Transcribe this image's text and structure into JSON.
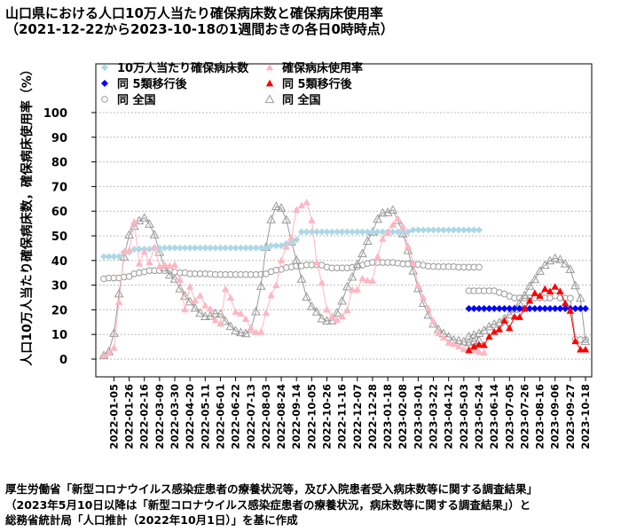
{
  "title_line1": "山口県における人口10万人当たり確保病床数と確保病床使用率",
  "title_line2": "（2021-12-22から2023-10-18の1週間おきの各日0時時点）",
  "source_lines": [
    "厚生労働省「新型コロナウイルス感染症患者の療養状況等，及び入院患者受入病床数等に関する調査結果」",
    "（2023年5月10日以降は「新型コロナウイルス感染症患者の療養状況，病床数等に関する調査結果」）と",
    "総務省統計局「人口推計（2022年10月1日）」を基に作成"
  ],
  "colors": {
    "beds_pref": "#add8e6",
    "beds_pref_post": "#0000ff",
    "usage_pref": "#ffb6c1",
    "usage_pref_post": "#ff0000",
    "national": "#999999",
    "grid": "#bbbbbb"
  },
  "chart_data": {
    "type": "scatter",
    "ylabel": "人口10万人当たり確保病床数，確保病床使用率（%）",
    "ylim": [
      0,
      100
    ],
    "yticks": [
      0,
      10,
      20,
      30,
      40,
      50,
      60,
      70,
      80,
      90,
      100
    ],
    "grid": true,
    "legend_position": "top-left",
    "x_start": "2021-12-22",
    "x_end": "2023-10-18",
    "x_interval_days": 7,
    "xtick_labels": [
      "2022-01-05",
      "2022-01-26",
      "2022-02-16",
      "2022-03-09",
      "2022-03-30",
      "2022-04-20",
      "2022-05-11",
      "2022-06-01",
      "2022-06-22",
      "2022-07-13",
      "2022-08-03",
      "2022-08-24",
      "2022-09-14",
      "2022-10-05",
      "2022-10-26",
      "2022-11-16",
      "2022-12-07",
      "2022-12-28",
      "2023-01-18",
      "2023-02-08",
      "2023-03-01",
      "2023-03-22",
      "2023-04-12",
      "2023-05-03",
      "2023-05-24",
      "2023-06-14",
      "2023-07-05",
      "2023-07-26",
      "2023-08-16",
      "2023-09-06",
      "2023-09-27",
      "2023-10-18"
    ],
    "legend": [
      {
        "label": "10万人当たり確保病床数",
        "series": "beds_pref",
        "marker": "diamond"
      },
      {
        "label": "確保病床使用率",
        "series": "usage_pref",
        "marker": "triangle"
      },
      {
        "label": "同 5類移行後",
        "series": "beds_pref_post",
        "marker": "diamond"
      },
      {
        "label": "同 5類移行後",
        "series": "usage_pref_post",
        "marker": "triangle"
      },
      {
        "label": "同 全国",
        "series": "beds_national",
        "marker": "circle-open"
      },
      {
        "label": "同 全国",
        "series": "usage_national",
        "marker": "triangle-open"
      }
    ],
    "series": {
      "beds_pref": {
        "start": "2021-12-22",
        "values": [
          41.6,
          41.6,
          41.6,
          41.6,
          43.4,
          43.4,
          44.6,
          44.6,
          44.6,
          44.6,
          45.1,
          45.1,
          45.1,
          45.1,
          45.1,
          45.1,
          45.1,
          45.1,
          45.1,
          45.1,
          45.1,
          45.1,
          45.1,
          45.1,
          45.1,
          45.1,
          45.1,
          45.1,
          45.1,
          45.1,
          45.1,
          45.1,
          45.1,
          46,
          46,
          46,
          46.8,
          47.6,
          48.4,
          51.6,
          51.6,
          51.6,
          51.6,
          51.6,
          51.6,
          51.6,
          51.6,
          51.6,
          51.6,
          51.6,
          51.6,
          51.6,
          51.6,
          51.6,
          51.6,
          51.6,
          51.6,
          51.6,
          51.6,
          51.6,
          51.6,
          52.4,
          52.4,
          52.4,
          52.4,
          52.4,
          52.4,
          52.4,
          52.4,
          52.4,
          52.4,
          52.4,
          52.4,
          52.4,
          52.4
        ]
      },
      "beds_pref_post": {
        "start": "2023-05-10",
        "values": [
          20.5,
          20.5,
          20.5,
          20.5,
          20.5,
          20.5,
          20.5,
          20.5,
          20.5,
          20.5,
          20.5,
          20.5,
          20.5,
          20.5,
          20.5,
          20.5,
          20.5,
          20.5,
          20.5,
          20.5,
          20.5,
          20.5,
          20.5,
          20.5
        ]
      },
      "usage_pref": {
        "start": "2021-12-22",
        "values": [
          1.5,
          2.5,
          4.6,
          23.2,
          43.7,
          44.2,
          55.7,
          38.8,
          43.6,
          39.3,
          45.4,
          37.7,
          38.2,
          37.9,
          38.3,
          32.2,
          20.2,
          29.4,
          23.8,
          25.8,
          21.8,
          20.4,
          15.8,
          14.4,
          28.4,
          24.9,
          19.2,
          18.5,
          16.3,
          12.5,
          10.9,
          11.1,
          18.8,
          25.9,
          30,
          40,
          45.6,
          49.3,
          60.6,
          62.3,
          63.6,
          56.3,
          39.2,
          31,
          20.1,
          17.3,
          15.9,
          17.4,
          19.9,
          28.1,
          28.2,
          32.7,
          31.9,
          31.8,
          41.6,
          48.8,
          51.4,
          54.5,
          57,
          53.7,
          45.8,
          39.2,
          30,
          25,
          20.6,
          15.5,
          10.5,
          8.7,
          6.7,
          6.2,
          5.1,
          4,
          4.2,
          3.7,
          3,
          2.6
        ]
      },
      "usage_pref_post": {
        "start": "2023-05-10",
        "values": [
          3.6,
          5.1,
          5.9,
          5.7,
          9.1,
          11.1,
          12.1,
          15.6,
          12.6,
          17.2,
          17.1,
          20.5,
          23.7,
          26.8,
          25.7,
          28.5,
          27.5,
          29.4,
          27.5,
          22.7,
          19.6,
          7.3,
          3.9,
          3.9
        ]
      },
      "beds_national": {
        "start": "2021-12-22",
        "segments": [
          {
            "start": "2021-12-22",
            "values": [
              32.6,
              32.9,
              32.9,
              32.9,
              33.3,
              33.5,
              34.6,
              35,
              35.4,
              35.9,
              35.9,
              35.9,
              35.9,
              35.9,
              35.3,
              35,
              35,
              34.6,
              34.6,
              34.6,
              34.6,
              34.5,
              34.3,
              34.3,
              34.3,
              34.3,
              34.3,
              34.3,
              34.3,
              34.3,
              34.3,
              34.4,
              34.6,
              35.5,
              36.1,
              36.4,
              37.1,
              37.4,
              37.8,
              37.8,
              38.2,
              38.2,
              38.3,
              38.1,
              37.3,
              37,
              37,
              37,
              37,
              37.2,
              37.5,
              38.1,
              38.8,
              39.2,
              39.2,
              39.2,
              39.2,
              39.2,
              38.9,
              38.6,
              38.6,
              38.4,
              38.4,
              38.1,
              37.7,
              37.6,
              37.5,
              37.5,
              37.5,
              37.5,
              37.3,
              37.3,
              37.3,
              37.3,
              37.3
            ]
          },
          {
            "start": "2023-05-10",
            "values": [
              27.7,
              27.7,
              27.7,
              27.7,
              27.7,
              27.7,
              27,
              26.4,
              25.5,
              24.8,
              24.8,
              24.8,
              24.8,
              24.8,
              24.8,
              24.8,
              24.8,
              25.7,
              24.8,
              24.7,
              24.7,
              8,
              7.9,
              7.9
            ]
          }
        ]
      },
      "usage_national": {
        "start": "2021-12-22",
        "segments": [
          {
            "start": "2021-12-22",
            "values": [
              1.5,
              3.1,
              10.5,
              26.5,
              41.5,
              50.4,
              53.9,
              56.2,
              57.3,
              54.8,
              50.5,
              43.4,
              37.1,
              34.1,
              32.5,
              28.6,
              25.6,
              23.3,
              20.7,
              18.7,
              17.3,
              17.5,
              18.5,
              18.3,
              15.4,
              13.3,
              11.5,
              10.8,
              10.4,
              12.1,
              19.3,
              29.6,
              45.4,
              56.6,
              61.9,
              61.3,
              56.5,
              47.6,
              40.2,
              32.5,
              25.2,
              21.4,
              19.2,
              16.4,
              15.5,
              15.6,
              18.8,
              23.6,
              29.4,
              33.3,
              38.5,
              42.8,
              47.9,
              51.6,
              56.8,
              59.3,
              59.5,
              60.5,
              56.3,
              50.9,
              44.1,
              35.8,
              28.7,
              22.7,
              17.9,
              14.3,
              12.1,
              10.4,
              9.1,
              7.8,
              7.5,
              7.1,
              6.7,
              7.2,
              7.6
            ]
          },
          {
            "start": "2023-05-10",
            "values": [
              9.2,
              9.9,
              10.5,
              11.7,
              13.2,
              14.2,
              14.9,
              16.4,
              18,
              20.3,
              22.6,
              25.9,
              29.6,
              32.3,
              35.7,
              38.1,
              39.9,
              40.9,
              40.4,
              38.7,
              36.4,
              29.8,
              24.7,
              7.2
            ]
          }
        ]
      }
    }
  }
}
